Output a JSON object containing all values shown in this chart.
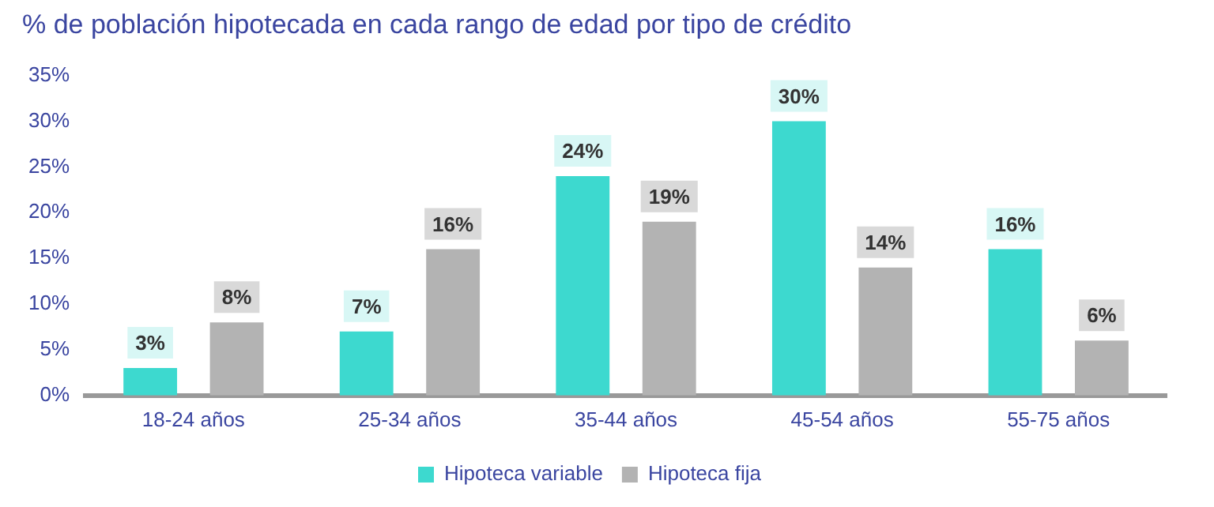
{
  "chart_data": {
    "type": "bar",
    "title": "% de población hipotecada en cada rango de edad por tipo de crédito",
    "categories": [
      "18-24 años",
      "25-34 años",
      "35-44 años",
      "45-54 años",
      "55-75 años"
    ],
    "series": [
      {
        "name": "Hipoteca variable",
        "color": "#3dd9cf",
        "values": [
          3,
          7,
          24,
          30,
          16
        ],
        "value_labels": [
          "3%",
          "7%",
          "24%",
          "30%",
          "16%"
        ]
      },
      {
        "name": "Hipoteca fija",
        "color": "#b3b3b3",
        "values": [
          8,
          16,
          19,
          14,
          6
        ],
        "value_labels": [
          "8%",
          "16%",
          "19%",
          "14%",
          "6%"
        ]
      }
    ],
    "ylim": [
      0,
      35
    ],
    "yticks": [
      {
        "value": 0,
        "label": "0%"
      },
      {
        "value": 5,
        "label": "5%"
      },
      {
        "value": 10,
        "label": "10%"
      },
      {
        "value": 15,
        "label": "15%"
      },
      {
        "value": 20,
        "label": "20%"
      },
      {
        "value": 25,
        "label": "25%"
      },
      {
        "value": 30,
        "label": "30%"
      },
      {
        "value": 35,
        "label": "35%"
      }
    ],
    "grid": false,
    "legend": "bottom"
  }
}
